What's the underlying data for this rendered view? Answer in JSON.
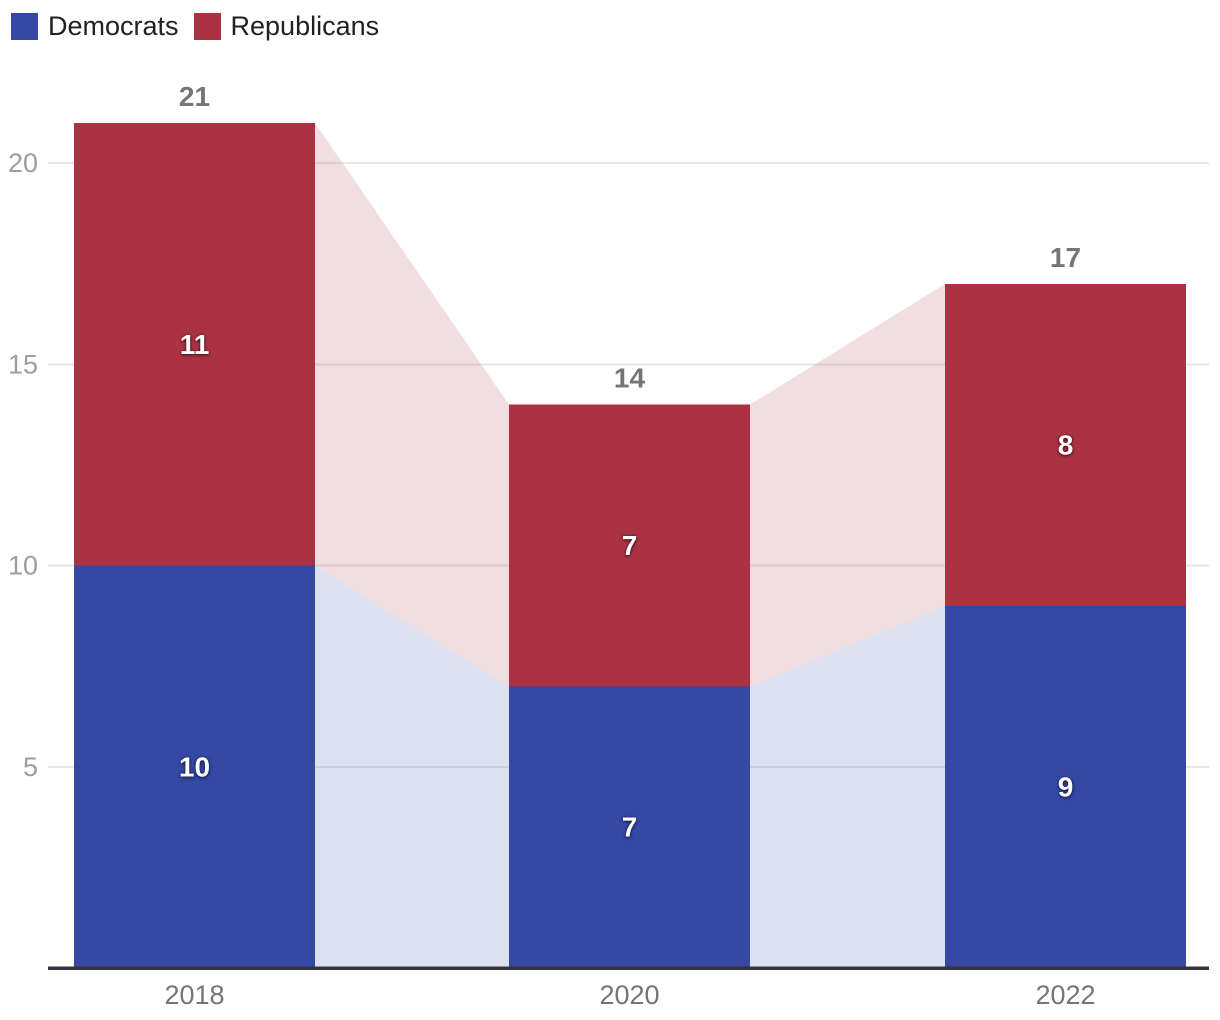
{
  "legend": {
    "items": [
      {
        "label": "Democrats",
        "color": "#3448a4"
      },
      {
        "label": "Republicans",
        "color": "#aa3243"
      }
    ]
  },
  "chart_data": {
    "type": "bar",
    "stacked": true,
    "orientation": "vertical",
    "title": "",
    "xlabel": "",
    "ylabel": "",
    "categories": [
      "2018",
      "2020",
      "2022"
    ],
    "series": [
      {
        "name": "Democrats",
        "color": "#3448a4",
        "values": [
          10,
          7,
          9
        ]
      },
      {
        "name": "Republicans",
        "color": "#aa3243",
        "values": [
          11,
          7,
          8
        ]
      }
    ],
    "totals": [
      21,
      14,
      17
    ],
    "yticks": [
      5,
      10,
      15,
      20
    ],
    "ylim": [
      0,
      21
    ],
    "grid": true,
    "legend_position": "top-left",
    "connector_bands": true,
    "connector_opacity": 0.16,
    "colors": {
      "gridline": "#e7e7e7",
      "axis_line": "#31353b",
      "ytick_label": "#9e9e9e",
      "category_label": "#757575",
      "total_label": "#757575",
      "value_label": "#ffffff"
    }
  }
}
